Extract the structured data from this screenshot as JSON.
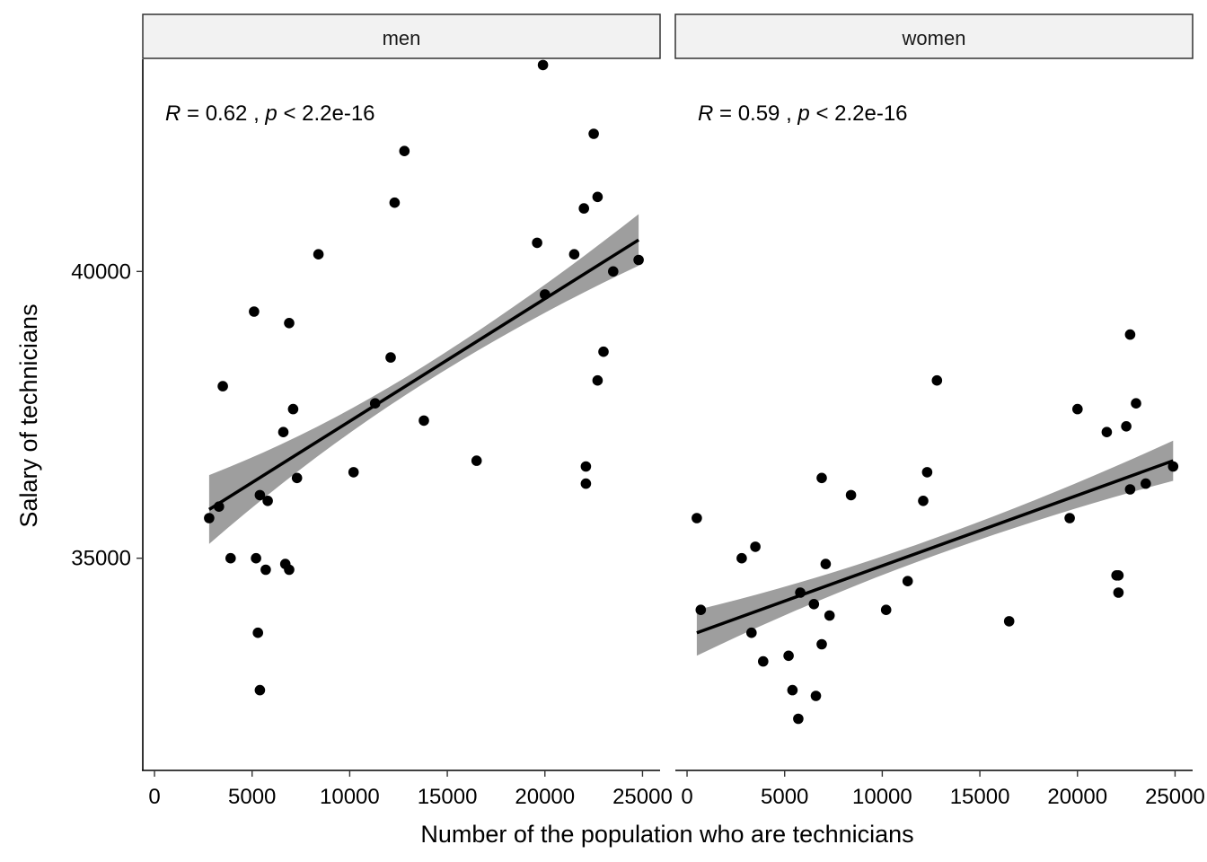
{
  "chart_data": {
    "type": "scatter",
    "ylabel": "Salary of technicians",
    "xlabel": "Number of the population who are technicians",
    "xlim": [
      -600,
      25900
    ],
    "ylim": [
      31300,
      43700
    ],
    "x_ticks": [
      0,
      5000,
      10000,
      15000,
      20000,
      25000
    ],
    "x_tick_labels": [
      "0",
      "5000",
      "10000",
      "15000",
      "20000",
      "25000"
    ],
    "y_ticks": [
      35000,
      40000
    ],
    "y_tick_labels": [
      "35000",
      "40000"
    ],
    "grid": false,
    "panels": [
      {
        "name": "men",
        "annotation": {
          "r_label": "R",
          "r_text": " = 0.62 , ",
          "p_label": "p",
          "p_text": " < 2.2e-16"
        },
        "regression": {
          "x0": 2800,
          "y0": 35850,
          "x1": 24800,
          "y1": 40550,
          "ci_start": 600,
          "ci_end": 450
        },
        "points": [
          [
            2800,
            35700
          ],
          [
            3300,
            35900
          ],
          [
            3500,
            38000
          ],
          [
            3900,
            35000
          ],
          [
            5100,
            39300
          ],
          [
            5200,
            35000
          ],
          [
            5300,
            33700
          ],
          [
            5400,
            32700
          ],
          [
            5400,
            36100
          ],
          [
            5700,
            34800
          ],
          [
            5800,
            36000
          ],
          [
            6600,
            37200
          ],
          [
            6700,
            34900
          ],
          [
            6900,
            39100
          ],
          [
            6900,
            34800
          ],
          [
            7100,
            37600
          ],
          [
            7300,
            36400
          ],
          [
            8400,
            40300
          ],
          [
            10200,
            36500
          ],
          [
            11300,
            37700
          ],
          [
            12100,
            38500
          ],
          [
            12300,
            41200
          ],
          [
            12800,
            42100
          ],
          [
            13800,
            37400
          ],
          [
            16500,
            36700
          ],
          [
            19600,
            40500
          ],
          [
            19900,
            43600
          ],
          [
            20000,
            39600
          ],
          [
            21500,
            40300
          ],
          [
            22000,
            41100
          ],
          [
            22100,
            36600
          ],
          [
            22100,
            36300
          ],
          [
            22500,
            42400
          ],
          [
            22700,
            41300
          ],
          [
            22700,
            38100
          ],
          [
            23000,
            38600
          ],
          [
            23500,
            40000
          ],
          [
            24800,
            40200
          ]
        ]
      },
      {
        "name": "women",
        "annotation": {
          "r_label": "R",
          "r_text": " = 0.59 , ",
          "p_label": "p",
          "p_text": " < 2.2e-16"
        },
        "regression": {
          "x0": 500,
          "y0": 33700,
          "x1": 24900,
          "y1": 36700,
          "ci_start": 400,
          "ci_end": 350
        },
        "points": [
          [
            500,
            35700
          ],
          [
            700,
            34100
          ],
          [
            2800,
            35000
          ],
          [
            3300,
            33700
          ],
          [
            3500,
            35200
          ],
          [
            3900,
            33200
          ],
          [
            5200,
            33300
          ],
          [
            5400,
            32700
          ],
          [
            5700,
            32200
          ],
          [
            5800,
            34400
          ],
          [
            6500,
            34200
          ],
          [
            6600,
            32600
          ],
          [
            6900,
            36400
          ],
          [
            6900,
            33500
          ],
          [
            7100,
            34900
          ],
          [
            7300,
            34000
          ],
          [
            8400,
            36100
          ],
          [
            10200,
            34100
          ],
          [
            11300,
            34600
          ],
          [
            12100,
            36000
          ],
          [
            12300,
            36500
          ],
          [
            12800,
            38100
          ],
          [
            16500,
            33900
          ],
          [
            19600,
            35700
          ],
          [
            20000,
            37600
          ],
          [
            21500,
            37200
          ],
          [
            22000,
            34700
          ],
          [
            22100,
            34700
          ],
          [
            22100,
            34400
          ],
          [
            22500,
            37300
          ],
          [
            22700,
            36200
          ],
          [
            22700,
            38900
          ],
          [
            23000,
            37700
          ],
          [
            23500,
            36300
          ],
          [
            24900,
            36600
          ]
        ]
      }
    ]
  }
}
